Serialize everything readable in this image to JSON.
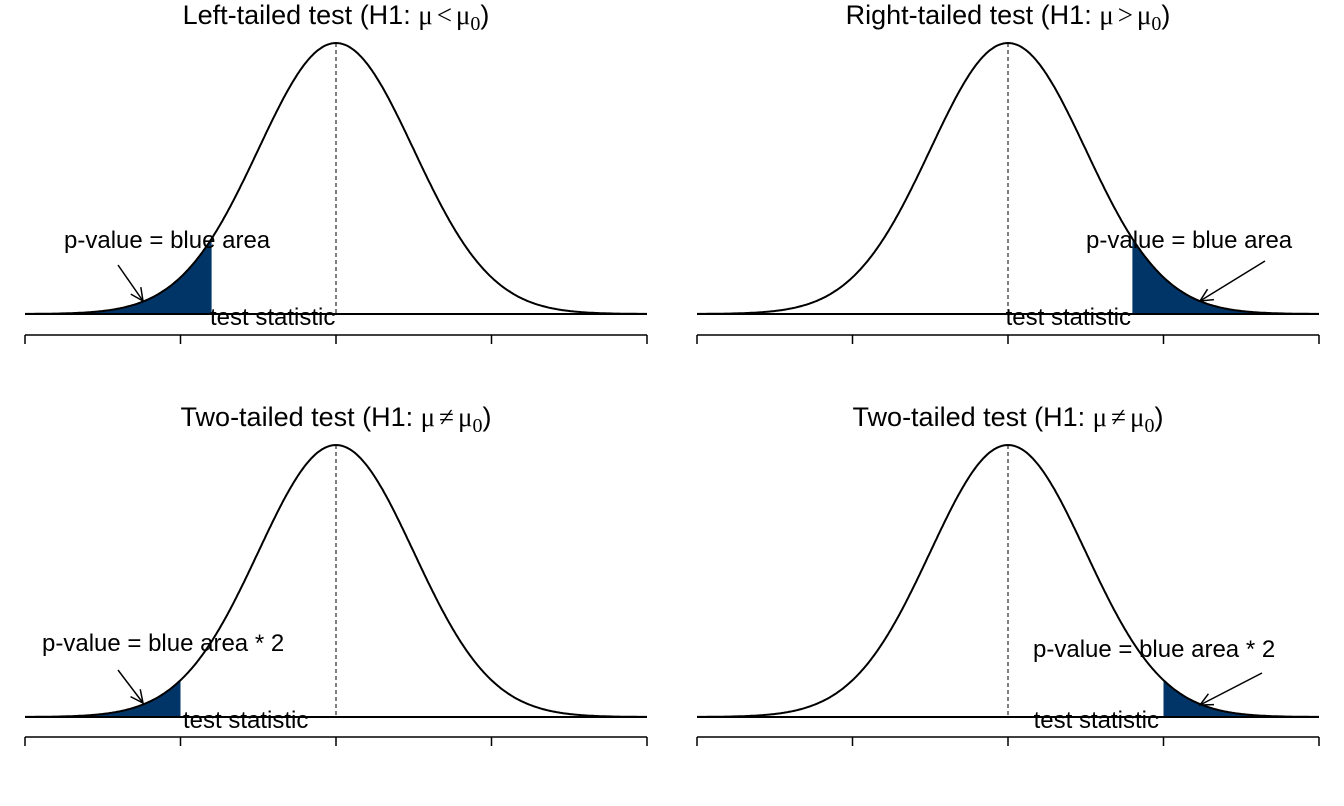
{
  "colors": {
    "shade": "#013567",
    "line": "#000000",
    "background": "#ffffff"
  },
  "panels": [
    {
      "title_text": "Left-tailed test (H1: ",
      "title_mu": "μ",
      "title_op": "<",
      "title_mu0": "μ",
      "title_sub": "0",
      "title_close": ")",
      "annotation": "p-value = blue area",
      "stat_label": "test statistic",
      "tail": "left",
      "test_statistic": -1.6
    },
    {
      "title_text": "Right-tailed test (H1: ",
      "title_mu": "μ",
      "title_op": ">",
      "title_mu0": "μ",
      "title_sub": "0",
      "title_close": ")",
      "annotation": "p-value = blue area",
      "stat_label": "test statistic",
      "tail": "right",
      "test_statistic": 1.6
    },
    {
      "title_text": "Two-tailed test (H1: ",
      "title_mu": "μ",
      "title_op": "≠",
      "title_mu0": "μ",
      "title_sub": "0",
      "title_close": ")",
      "annotation": "p-value = blue area * 2",
      "stat_label": "test statistic",
      "tail": "left",
      "test_statistic": -2.0
    },
    {
      "title_text": "Two-tailed test (H1: ",
      "title_mu": "μ",
      "title_op": "≠",
      "title_mu0": "μ",
      "title_sub": "0",
      "title_close": ")",
      "annotation": "p-value = blue area * 2",
      "stat_label": "test statistic",
      "tail": "right",
      "test_statistic": 2.0
    }
  ]
}
